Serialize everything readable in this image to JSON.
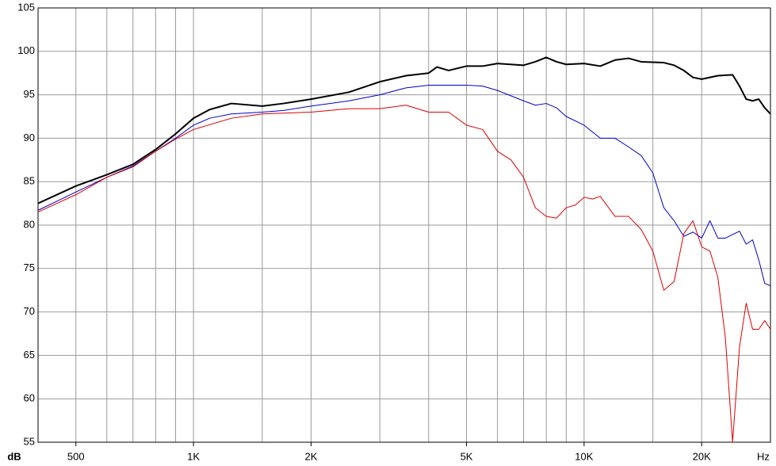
{
  "chart_data": {
    "type": "line",
    "log_x": true,
    "grid": true,
    "x_label": "Hz",
    "y_label": "dB",
    "xlim": [
      400,
      30000
    ],
    "ylim": [
      55,
      105
    ],
    "xticks": [
      500,
      {
        "value": 1000,
        "label": "1K"
      },
      {
        "value": 2000,
        "label": "2K"
      },
      {
        "value": 5000,
        "label": "5K"
      },
      {
        "value": 10000,
        "label": "10K"
      },
      {
        "value": 20000,
        "label": "20K"
      }
    ],
    "xgrid": [
      500,
      600,
      700,
      800,
      900,
      1000,
      1500,
      2000,
      3000,
      4000,
      5000,
      6000,
      7000,
      8000,
      9000,
      10000,
      15000,
      20000
    ],
    "yticks": [
      55,
      60,
      65,
      70,
      75,
      80,
      85,
      90,
      95,
      100,
      105
    ],
    "series": [
      {
        "color": "#000000",
        "width": 2,
        "x": [
          400,
          500,
          600,
          700,
          800,
          900,
          1000,
          1100,
          1250,
          1500,
          1700,
          2000,
          2500,
          3000,
          3500,
          4000,
          4200,
          4500,
          5000,
          5500,
          6000,
          7000,
          7500,
          8000,
          8500,
          9000,
          10000,
          11000,
          12000,
          13000,
          14000,
          16000,
          17000,
          18000,
          19000,
          20000,
          22000,
          24000,
          25000,
          26000,
          27000,
          28000,
          29000,
          30000
        ],
        "values": [
          82.5,
          84.5,
          85.8,
          87,
          88.7,
          90.5,
          92.3,
          93.3,
          94,
          93.7,
          94,
          94.5,
          95.3,
          96.5,
          97.2,
          97.5,
          98.2,
          97.8,
          98.3,
          98.3,
          98.6,
          98.4,
          98.8,
          99.3,
          98.8,
          98.5,
          98.6,
          98.3,
          99,
          99.2,
          98.8,
          98.7,
          98.4,
          97.8,
          97,
          96.8,
          97.2,
          97.3,
          96,
          94.5,
          94.3,
          94.5,
          93.5,
          92.8
        ]
      },
      {
        "color": "#0000cc",
        "width": 1,
        "x": [
          400,
          500,
          600,
          700,
          800,
          900,
          1000,
          1100,
          1250,
          1500,
          1700,
          2000,
          2500,
          3000,
          3500,
          4000,
          5000,
          5500,
          6000,
          7000,
          7500,
          8000,
          8500,
          9000,
          10000,
          11000,
          12000,
          13000,
          14000,
          15000,
          16000,
          17000,
          18000,
          19000,
          20000,
          21000,
          22000,
          23000,
          25000,
          26000,
          27000,
          28000,
          29000,
          30000
        ],
        "values": [
          81.7,
          83.8,
          85.5,
          86.8,
          88.5,
          90,
          91.5,
          92.3,
          92.8,
          93,
          93.2,
          93.7,
          94.3,
          95,
          95.8,
          96.1,
          96.1,
          96,
          95.5,
          94.3,
          93.8,
          94,
          93.5,
          92.5,
          91.5,
          90,
          90,
          89,
          88,
          86,
          82,
          80.5,
          78.7,
          79.2,
          78.5,
          80.5,
          78.5,
          78.5,
          79.3,
          77.8,
          78.3,
          76,
          73.3,
          73
        ]
      },
      {
        "color": "#dd0000",
        "width": 1,
        "x": [
          400,
          500,
          600,
          700,
          800,
          900,
          1000,
          1250,
          1500,
          2000,
          2500,
          3000,
          3500,
          4000,
          4500,
          5000,
          5500,
          6000,
          6500,
          7000,
          7500,
          8000,
          8500,
          9000,
          9500,
          10000,
          10500,
          11000,
          12000,
          13000,
          14000,
          15000,
          16000,
          17000,
          18000,
          19000,
          20000,
          21000,
          22000,
          23000,
          24000,
          25000,
          26000,
          27000,
          28000,
          29000,
          30000
        ],
        "values": [
          81.5,
          83.5,
          85.5,
          86.7,
          88.5,
          89.9,
          91,
          92.3,
          92.8,
          93,
          93.4,
          93.4,
          93.8,
          93,
          93,
          91.5,
          91,
          88.5,
          87.5,
          85.5,
          82,
          81,
          80.8,
          82,
          82.3,
          83.2,
          83,
          83.3,
          81,
          81,
          79.5,
          77,
          72.5,
          73.5,
          79,
          80.5,
          77.5,
          77,
          74,
          67,
          55,
          66,
          71,
          68,
          68,
          69,
          68
        ]
      }
    ]
  }
}
